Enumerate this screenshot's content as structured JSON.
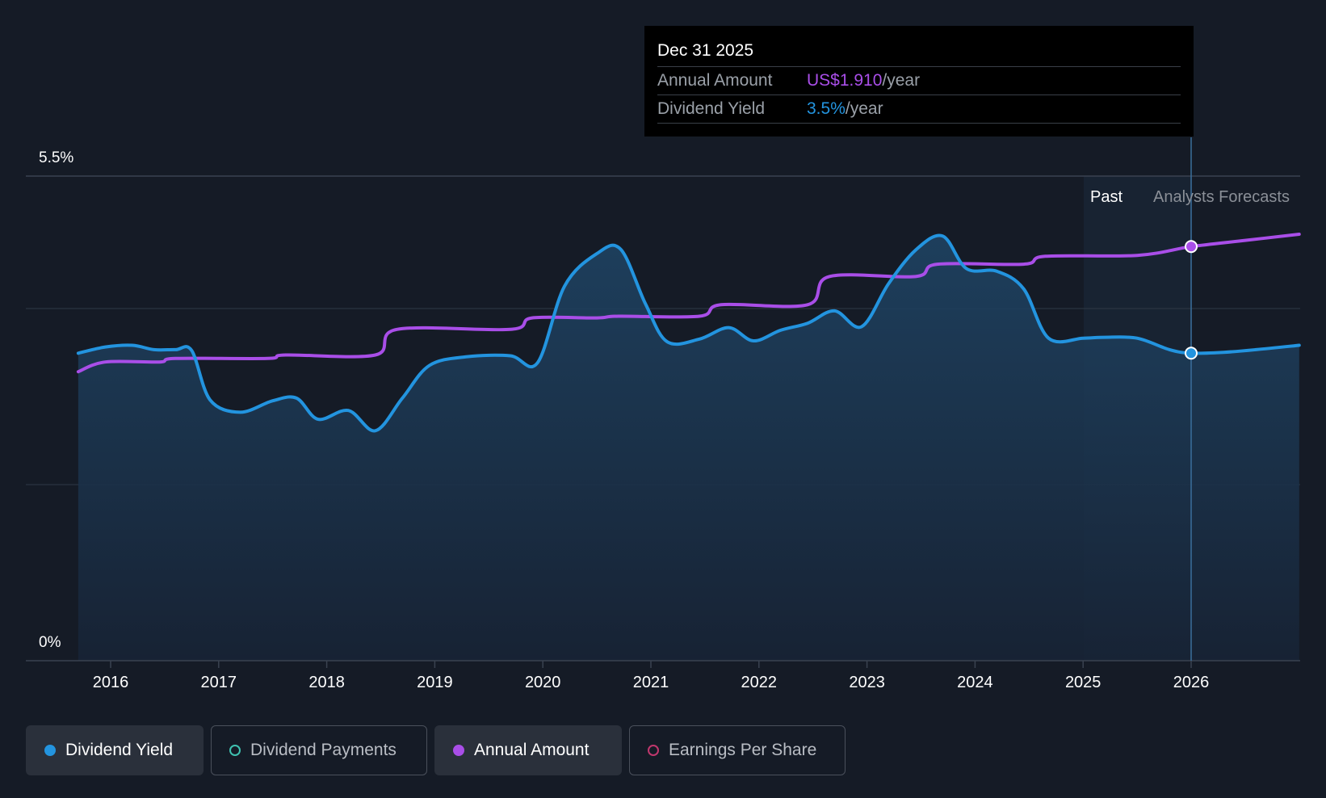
{
  "tooltip": {
    "date": "Dec 31 2025",
    "rows": [
      {
        "key": "Annual Amount",
        "value": "US$1.910",
        "unit": "/year",
        "color": "#a94ee8"
      },
      {
        "key": "Dividend Yield",
        "value": "3.5%",
        "unit": "/year",
        "color": "#2394df"
      }
    ]
  },
  "regions": {
    "past": "Past",
    "forecast": "Analysts Forecasts"
  },
  "legend": [
    {
      "label": "Dividend Yield",
      "color": "#2394df",
      "active": true,
      "filled": true
    },
    {
      "label": "Dividend Payments",
      "color": "#3fc1b0",
      "active": false,
      "filled": false
    },
    {
      "label": "Annual Amount",
      "color": "#a94ee8",
      "active": true,
      "filled": true
    },
    {
      "label": "Earnings Per Share",
      "color": "#c0376d",
      "active": false,
      "filled": false
    }
  ],
  "chart_data": {
    "type": "line",
    "y_ticks": [
      "5.5%",
      "0%"
    ],
    "ylim": [
      0,
      5.5
    ],
    "xlim": [
      2015,
      2027
    ],
    "x_ticks": [
      "2016",
      "2017",
      "2018",
      "2019",
      "2020",
      "2021",
      "2022",
      "2023",
      "2024",
      "2025",
      "2026"
    ],
    "past_forecast_boundary": 2026.0,
    "highlight_x": 2026.0,
    "series": [
      {
        "name": "Dividend Yield",
        "color": "#2394df",
        "area": true,
        "points": [
          [
            2015.7,
            3.49
          ],
          [
            2015.95,
            3.56
          ],
          [
            2016.2,
            3.58
          ],
          [
            2016.4,
            3.53
          ],
          [
            2016.6,
            3.53
          ],
          [
            2016.75,
            3.52
          ],
          [
            2016.92,
            2.96
          ],
          [
            2017.2,
            2.82
          ],
          [
            2017.5,
            2.95
          ],
          [
            2017.72,
            2.98
          ],
          [
            2017.92,
            2.74
          ],
          [
            2018.2,
            2.84
          ],
          [
            2018.45,
            2.61
          ],
          [
            2018.7,
            2.98
          ],
          [
            2018.95,
            3.35
          ],
          [
            2019.3,
            3.45
          ],
          [
            2019.7,
            3.46
          ],
          [
            2019.95,
            3.38
          ],
          [
            2020.2,
            4.25
          ],
          [
            2020.5,
            4.62
          ],
          [
            2020.72,
            4.67
          ],
          [
            2020.95,
            4.05
          ],
          [
            2021.15,
            3.62
          ],
          [
            2021.45,
            3.65
          ],
          [
            2021.72,
            3.78
          ],
          [
            2021.95,
            3.63
          ],
          [
            2022.2,
            3.75
          ],
          [
            2022.45,
            3.83
          ],
          [
            2022.7,
            3.97
          ],
          [
            2022.95,
            3.79
          ],
          [
            2023.2,
            4.28
          ],
          [
            2023.45,
            4.66
          ],
          [
            2023.7,
            4.82
          ],
          [
            2023.92,
            4.45
          ],
          [
            2024.2,
            4.42
          ],
          [
            2024.45,
            4.22
          ],
          [
            2024.68,
            3.66
          ],
          [
            2025.0,
            3.66
          ],
          [
            2025.2,
            3.67
          ],
          [
            2025.5,
            3.66
          ],
          [
            2025.8,
            3.53
          ],
          [
            2026.0,
            3.49
          ],
          [
            2026.3,
            3.5
          ],
          [
            2026.6,
            3.53
          ],
          [
            2027.0,
            3.58
          ]
        ]
      },
      {
        "name": "Annual Amount",
        "color": "#a94ee8",
        "area": false,
        "points": [
          [
            2015.7,
            3.28
          ],
          [
            2015.95,
            3.39
          ],
          [
            2016.45,
            3.39
          ],
          [
            2016.6,
            3.43
          ],
          [
            2017.45,
            3.43
          ],
          [
            2017.62,
            3.47
          ],
          [
            2018.45,
            3.47
          ],
          [
            2018.65,
            3.76
          ],
          [
            2019.7,
            3.76
          ],
          [
            2019.9,
            3.89
          ],
          [
            2020.5,
            3.89
          ],
          [
            2020.7,
            3.91
          ],
          [
            2021.45,
            3.91
          ],
          [
            2021.65,
            4.04
          ],
          [
            2022.45,
            4.04
          ],
          [
            2022.65,
            4.36
          ],
          [
            2023.45,
            4.36
          ],
          [
            2023.65,
            4.5
          ],
          [
            2024.45,
            4.5
          ],
          [
            2024.65,
            4.59
          ],
          [
            2025.5,
            4.6
          ],
          [
            2026.0,
            4.7
          ],
          [
            2026.5,
            4.77
          ],
          [
            2027.0,
            4.84
          ]
        ]
      }
    ]
  }
}
